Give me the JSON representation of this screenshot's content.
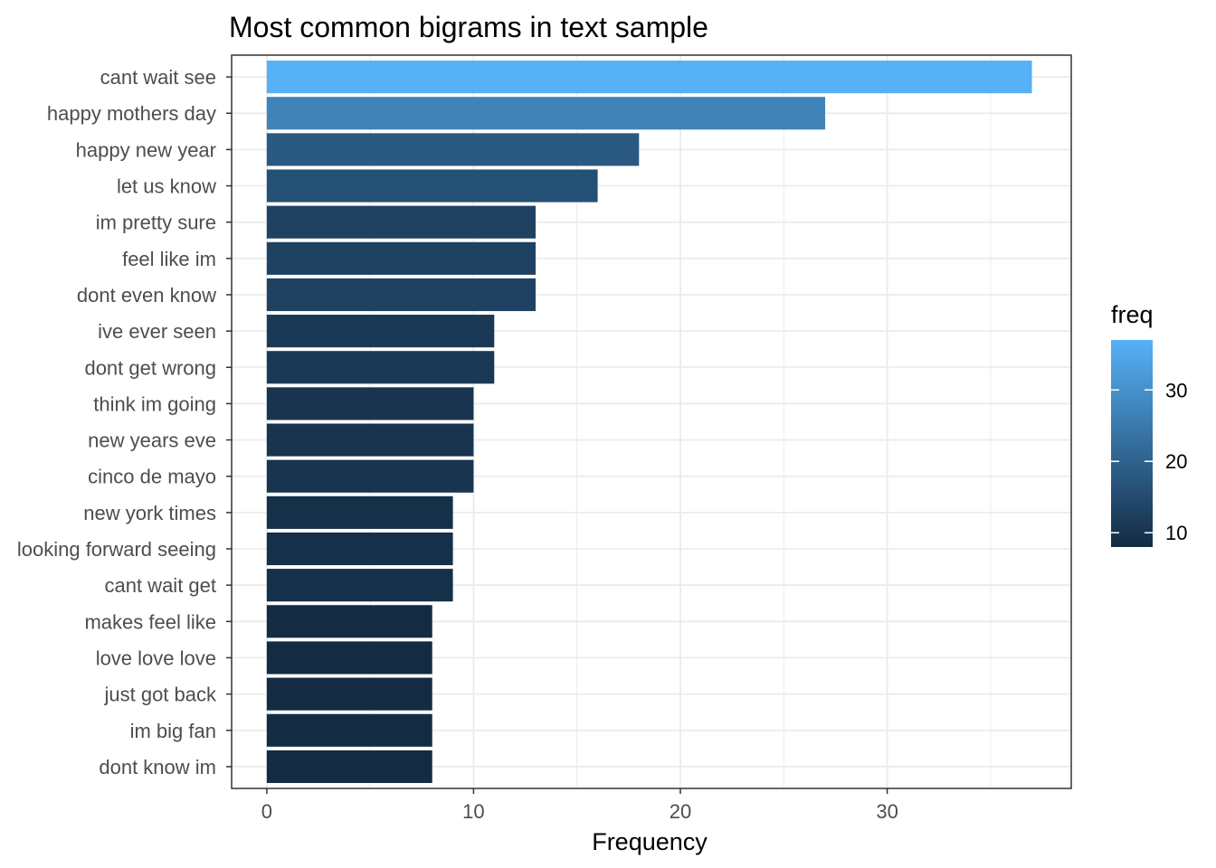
{
  "chart_data": {
    "type": "bar",
    "orientation": "horizontal",
    "title": "Most common bigrams in text sample",
    "xlabel": "Frequency",
    "ylabel": "",
    "categories": [
      "cant wait see",
      "happy mothers day",
      "happy new year",
      "let us know",
      "im pretty sure",
      "feel like im",
      "dont even know",
      "ive ever seen",
      "dont get wrong",
      "think im going",
      "new years eve",
      "cinco de mayo",
      "new york times",
      "looking forward seeing",
      "cant wait get",
      "makes feel like",
      "love love love",
      "just got back",
      "im big fan",
      "dont know im"
    ],
    "values": [
      37,
      27,
      18,
      16,
      13,
      13,
      13,
      11,
      11,
      10,
      10,
      10,
      9,
      9,
      9,
      8,
      8,
      8,
      8,
      8
    ],
    "xlim": [
      -1.7,
      38.9
    ],
    "xticks": [
      0,
      10,
      20,
      30
    ],
    "grid": true,
    "legend": {
      "title": "freq",
      "position": "right",
      "type": "colorbar",
      "range": [
        8,
        37
      ],
      "ticks": [
        10,
        20,
        30
      ],
      "color_low": "#132b43",
      "color_high": "#56b1f7"
    }
  }
}
